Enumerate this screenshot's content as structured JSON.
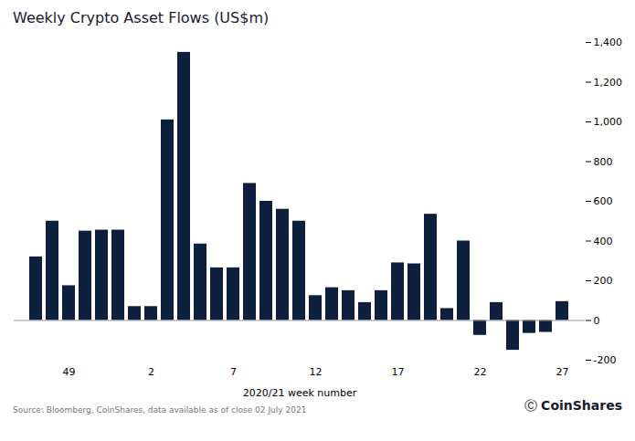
{
  "chart_data": {
    "type": "bar",
    "title": "Weekly Crypto Asset Flows (US$m)",
    "xlabel": "2020/21 week number",
    "annotations": [
      "Source: Bloomberg, CoinShares, data available as of close 02 July 2021",
      "Ⓒ",
      "CoinShares"
    ],
    "categories": [
      null,
      null,
      "49",
      null,
      null,
      null,
      null,
      "2",
      null,
      null,
      null,
      null,
      "7",
      null,
      null,
      null,
      null,
      "12",
      null,
      null,
      null,
      null,
      "17",
      null,
      null,
      null,
      null,
      "22",
      null,
      null,
      null,
      null,
      "27"
    ],
    "values": [
      320,
      500,
      175,
      450,
      455,
      455,
      70,
      70,
      1010,
      1350,
      385,
      265,
      265,
      690,
      600,
      560,
      500,
      125,
      165,
      150,
      90,
      150,
      290,
      285,
      535,
      60,
      400,
      -75,
      90,
      -150,
      -65,
      -60,
      95
    ],
    "color": "#0d1f3c",
    "ylim": [
      -200,
      1400
    ],
    "yticks": [
      -200,
      0,
      200,
      400,
      600,
      800,
      {
        "value": 1000,
        "label": "1,000"
      },
      {
        "value": 1200,
        "label": "1,200"
      },
      {
        "value": 1400,
        "label": "1,400"
      }
    ],
    "grid": false
  }
}
